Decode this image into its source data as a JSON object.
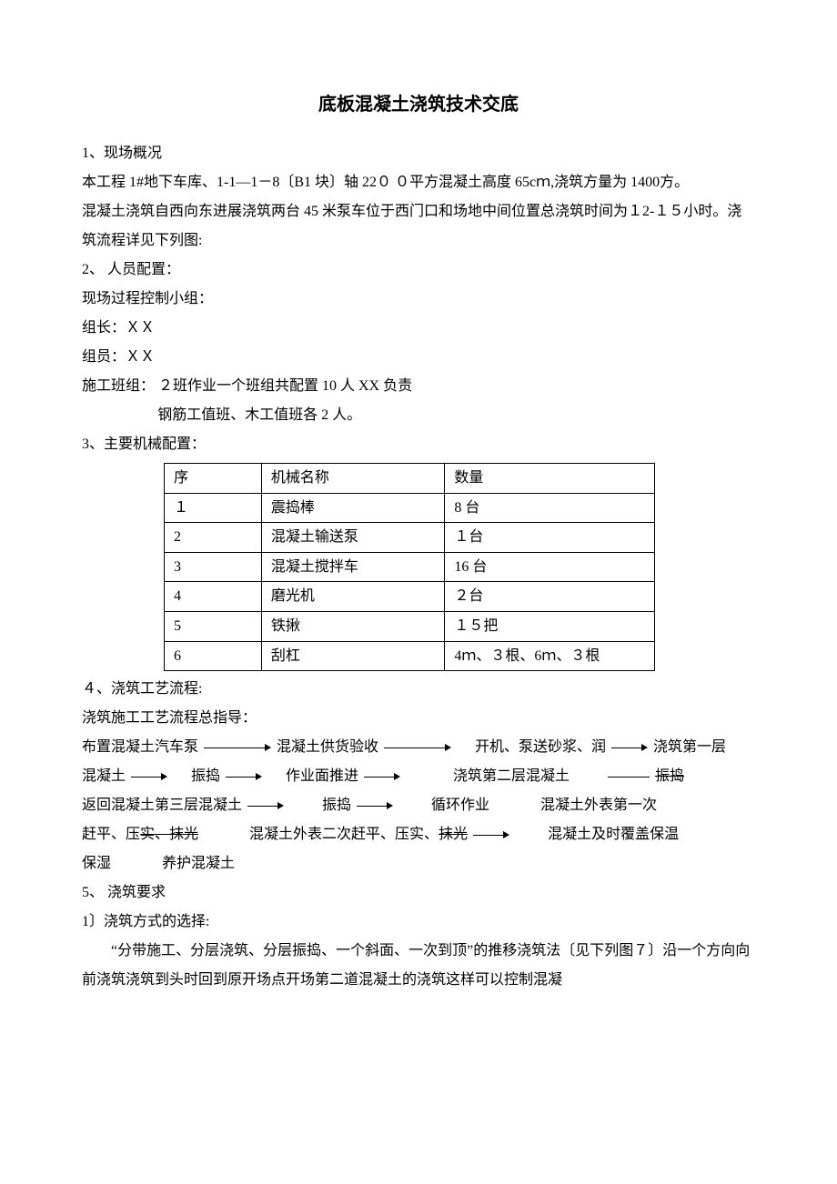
{
  "title": "底板混凝土浇筑技术交底",
  "s1": {
    "h": "1、现场概况",
    "p1": "本工程 1#地下车库、1-1—1－8〔B1 块〕轴 22０ ０平方混凝土高度 65cｍ,浇筑方量为 1400方。",
    "p2": "混凝土浇筑自西向东进展浇筑两台 45 米泵车位于西门口和场地中间位置总浇筑时间为１2-１５小时。浇筑流程详见下列图:"
  },
  "s2": {
    "h": "2、 人员配置：",
    "p1": "现场过程控制小组：",
    "p2": "组长：ＸＸ",
    "p3": "组员：ＸＸ",
    "p4": "施工班组： ２班作业一个班组共配置 10 人 XX 负责",
    "p5": "钢筋工值班、木工值班各 2 人。"
  },
  "s3": {
    "h": "3、主要机械配置：",
    "table": {
      "header": [
        "序",
        "机械名称",
        "数量"
      ],
      "rows": [
        [
          "１",
          "震捣棒",
          "8 台"
        ],
        [
          "2",
          "混凝土输送泵",
          "１台"
        ],
        [
          "3",
          "混凝土搅拌车",
          "16 台"
        ],
        [
          "4",
          "磨光机",
          "２台"
        ],
        [
          "5",
          "铁揪",
          "１５把"
        ],
        [
          "6",
          "刮杠",
          "4ｍ、３根、6ｍ、３根"
        ]
      ]
    }
  },
  "s4": {
    "h": "４、浇筑工艺流程:",
    "p1": "浇筑施工工艺流程总指导：",
    "flow": {
      "n1": "布置混凝土汽车泵",
      "n2": "混凝土供货验收",
      "n3": "开机、泵送砂浆、润",
      "n4": "浇筑第一层",
      "n5": "混凝土",
      "n6": "振捣",
      "n7": "作业面推进",
      "n8": "浇筑第二层混凝土",
      "n9": "振捣",
      "n10": "返回混凝土第三层混凝土",
      "n11": "振捣",
      "n12": "循环作业",
      "n13": "混凝土外表第一次",
      "n14a": "赶平、压",
      "n14b": "实、抹光",
      "n15a": "混凝土外表二次赶平、压实、",
      "n15b": "抹光",
      "n16": "混凝土及时覆盖保温",
      "n17": "保湿",
      "n18": "养护混凝土"
    }
  },
  "s5": {
    "h": "5、   浇筑要求",
    "sub1": "1〕浇筑方式的选择:",
    "p1": "“分带施工、分层浇筑、分层振捣、一个斜面、一次到顶”的推移浇筑法〔见下列图７〕沿一个方向向前浇筑浇筑到头时回到原开场点开场第二道混凝土的浇筑这样可以控制混凝"
  }
}
